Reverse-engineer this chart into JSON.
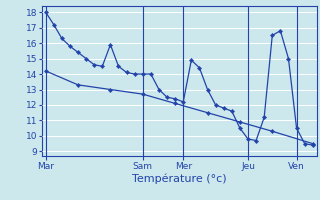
{
  "background_color": "#cce8ec",
  "grid_color": "#ffffff",
  "line_color": "#2244aa",
  "xlabel": "Température (°c)",
  "xlabel_fontsize": 8,
  "yticks": [
    9,
    10,
    11,
    12,
    13,
    14,
    15,
    16,
    17,
    18
  ],
  "ylim": [
    8.7,
    18.4
  ],
  "xtick_labels": [
    "Mar",
    "Sam",
    "Mer",
    "Jeu",
    "Ven"
  ],
  "series1_x": [
    0,
    1,
    2,
    3,
    4,
    5,
    6,
    7,
    8,
    9,
    10,
    11,
    12,
    13,
    14,
    15,
    16,
    17,
    18,
    19,
    20,
    21,
    22,
    23,
    24,
    25,
    26,
    27,
    28,
    29,
    30,
    31,
    32,
    33
  ],
  "series1_y": [
    18.0,
    17.2,
    16.3,
    15.8,
    15.4,
    15.0,
    14.6,
    14.5,
    15.9,
    14.5,
    14.1,
    14.0,
    14.0,
    14.0,
    13.0,
    12.5,
    12.4,
    12.2,
    14.9,
    14.4,
    13.0,
    12.0,
    11.8,
    11.6,
    10.5,
    9.8,
    9.7,
    11.2,
    16.5,
    16.8,
    15.0,
    10.5,
    9.5,
    9.4
  ],
  "series2_x": [
    0,
    4,
    8,
    12,
    16,
    20,
    24,
    28,
    33
  ],
  "series2_y": [
    14.2,
    13.3,
    13.0,
    12.7,
    12.1,
    11.5,
    10.9,
    10.3,
    9.5
  ]
}
